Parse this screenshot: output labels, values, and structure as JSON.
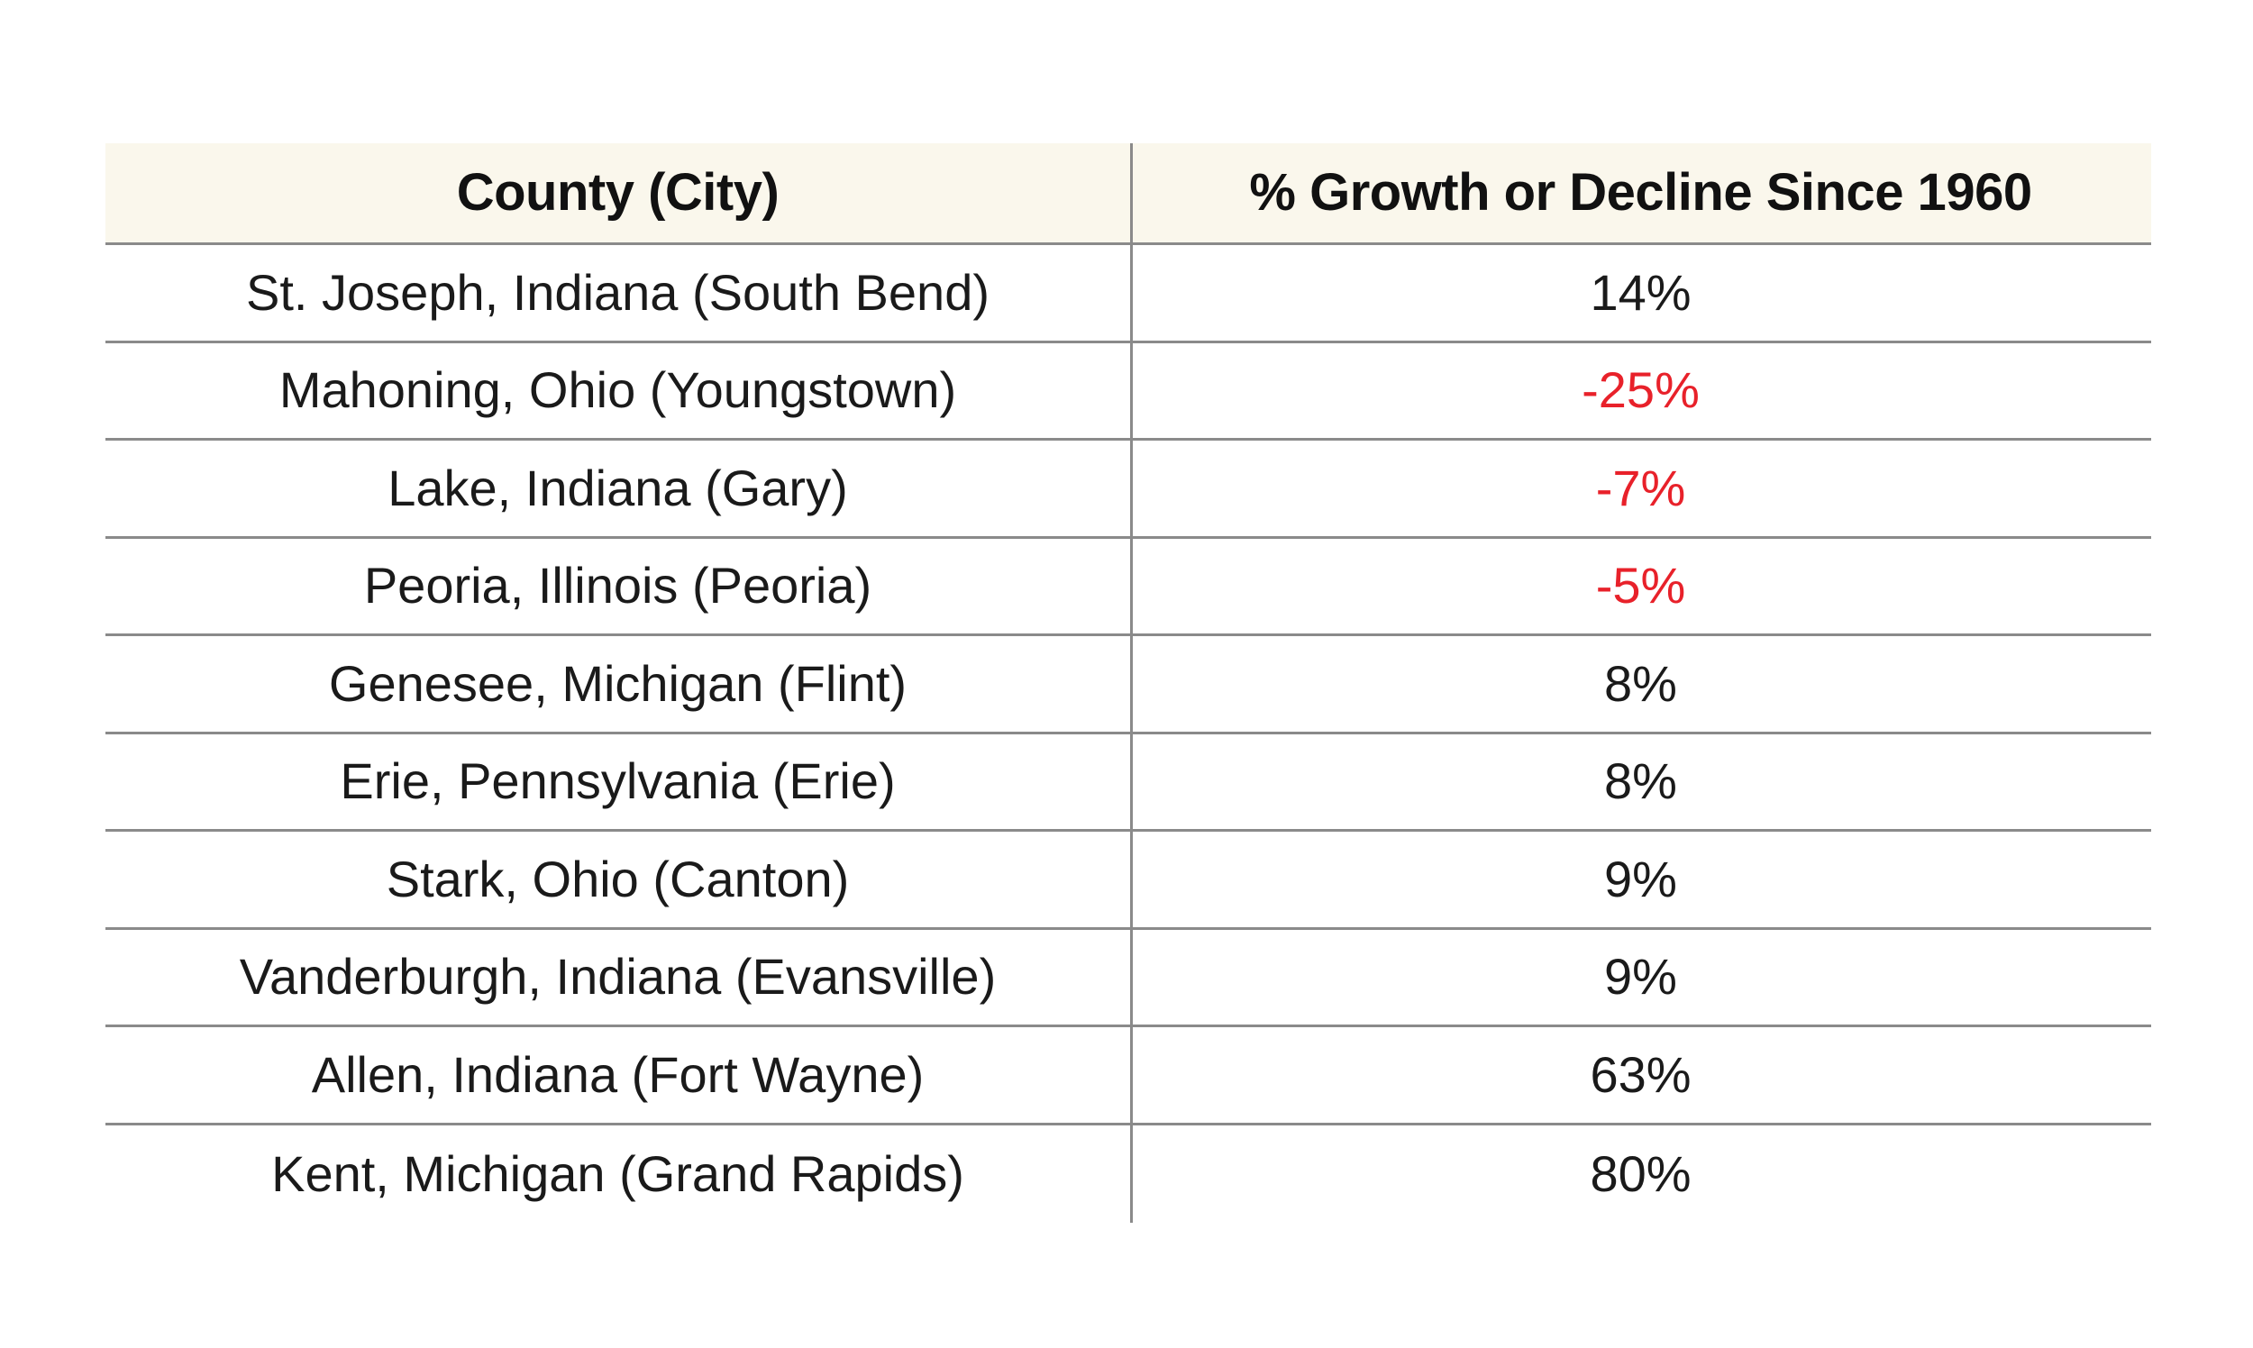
{
  "chart_data": {
    "type": "table",
    "columns": [
      "County (City)",
      "% Growth or Decline Since 1960"
    ],
    "rows": [
      [
        "St. Joseph, Indiana (South Bend)",
        "14%"
      ],
      [
        "Mahoning, Ohio (Youngstown)",
        "-25%"
      ],
      [
        "Lake, Indiana (Gary)",
        "-7%"
      ],
      [
        "Peoria, Illinois (Peoria)",
        "-5%"
      ],
      [
        "Genesee, Michigan (Flint)",
        "8%"
      ],
      [
        "Erie, Pennsylvania (Erie)",
        "8%"
      ],
      [
        "Stark, Ohio (Canton)",
        "9%"
      ],
      [
        "Vanderburgh, Indiana (Evansville)",
        "9%"
      ],
      [
        "Allen, Indiana (Fort Wayne)",
        "63%"
      ],
      [
        "Kent, Michigan (Grand Rapids)",
        "80%"
      ]
    ],
    "negative_value_rows": [
      1,
      2,
      3
    ],
    "layout_hints": {
      "header_background": "on",
      "outer_border": "off",
      "row_separators": "on",
      "column_divider": "on"
    }
  },
  "colors": {
    "header_bg": "#faf7ec",
    "separator_line": "#8a8a8a",
    "text": "#1a1a1a",
    "negative_text": "#e8212a"
  }
}
